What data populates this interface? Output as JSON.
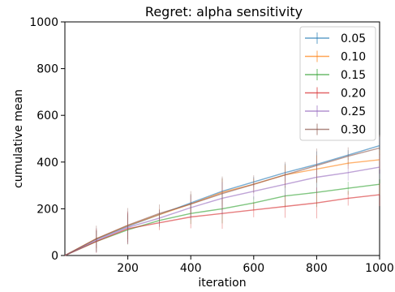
{
  "chart_data": {
    "type": "line",
    "title": "Regret: alpha sensitivity",
    "xlabel": "iteration",
    "ylabel": "cumulative mean",
    "xlim": [
      0,
      1000
    ],
    "ylim": [
      0,
      1000
    ],
    "xticks": [
      200,
      400,
      600,
      800,
      1000
    ],
    "yticks": [
      0,
      200,
      400,
      600,
      800,
      1000
    ],
    "grid": false,
    "legend_position": "top-right",
    "series": [
      {
        "name": "0.05",
        "color": "#1f77b4",
        "x": [
          0,
          100,
          200,
          300,
          400,
          500,
          600,
          700,
          800,
          900,
          1000
        ],
        "y": [
          0,
          70,
          125,
          175,
          225,
          275,
          315,
          355,
          390,
          430,
          470
        ]
      },
      {
        "name": "0.10",
        "color": "#ff7f0e",
        "x": [
          0,
          100,
          200,
          300,
          400,
          500,
          600,
          700,
          800,
          900,
          1000
        ],
        "y": [
          0,
          72,
          128,
          175,
          220,
          270,
          305,
          345,
          370,
          395,
          410
        ]
      },
      {
        "name": "0.15",
        "color": "#2ca02c",
        "x": [
          0,
          100,
          200,
          300,
          400,
          500,
          600,
          700,
          800,
          900,
          1000
        ],
        "y": [
          0,
          60,
          110,
          150,
          180,
          200,
          225,
          255,
          270,
          288,
          305
        ]
      },
      {
        "name": "0.20",
        "color": "#d62728",
        "x": [
          0,
          100,
          200,
          300,
          400,
          500,
          600,
          700,
          800,
          900,
          1000
        ],
        "y": [
          0,
          60,
          115,
          140,
          165,
          180,
          195,
          210,
          225,
          245,
          260
        ]
      },
      {
        "name": "0.25",
        "color": "#9467bd",
        "x": [
          0,
          100,
          200,
          300,
          400,
          500,
          600,
          700,
          800,
          900,
          1000
        ],
        "y": [
          0,
          65,
          120,
          160,
          205,
          245,
          275,
          305,
          335,
          355,
          378
        ]
      },
      {
        "name": "0.30",
        "color": "#8c564b",
        "x": [
          0,
          100,
          200,
          300,
          400,
          500,
          600,
          700,
          800,
          900,
          1000
        ],
        "y": [
          0,
          72,
          130,
          180,
          220,
          265,
          305,
          345,
          385,
          425,
          460
        ]
      }
    ]
  }
}
